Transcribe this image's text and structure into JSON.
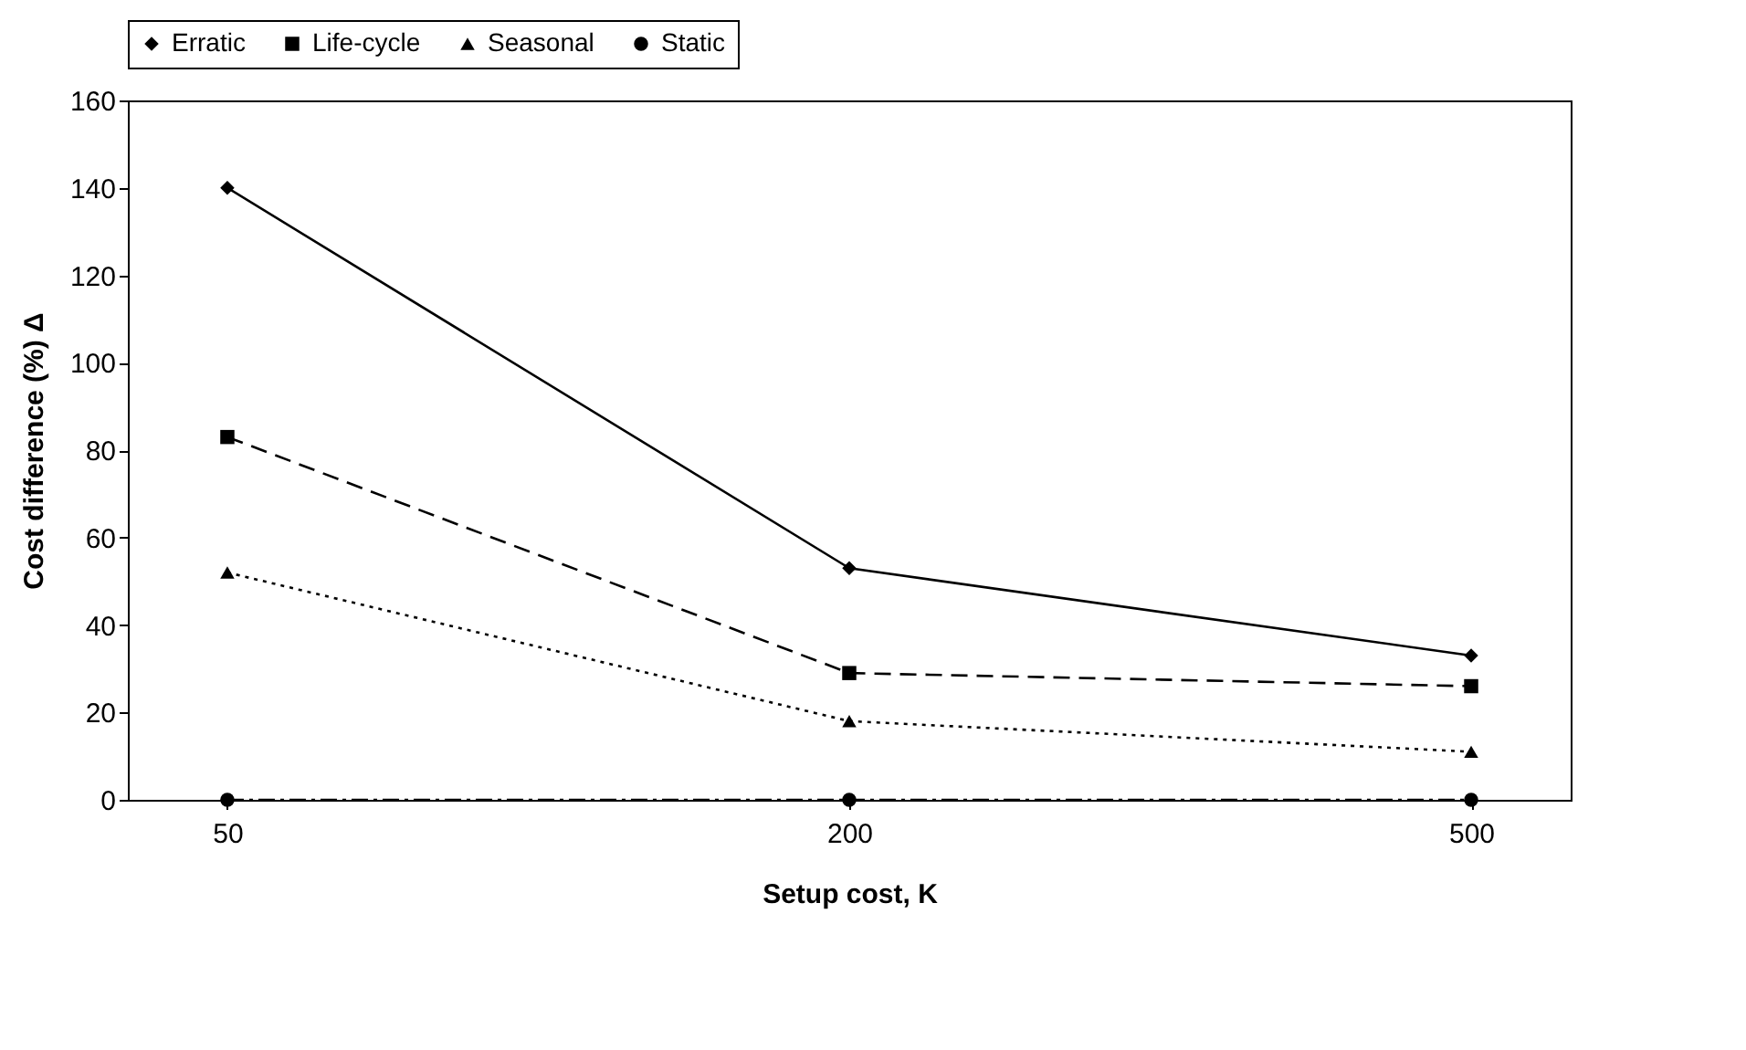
{
  "chart_data": {
    "type": "line",
    "xlabel": "Setup cost, K",
    "ylabel": "Cost difference (%) Δ",
    "categories": [
      "50",
      "200",
      "500"
    ],
    "series": [
      {
        "name": "Erratic",
        "color": "#000000",
        "marker": "diamond",
        "line_style": "solid",
        "values": [
          140,
          53,
          33
        ]
      },
      {
        "name": "Life-cycle",
        "color": "#000000",
        "marker": "square",
        "line_style": "dashed",
        "values": [
          83,
          29,
          26
        ]
      },
      {
        "name": "Seasonal",
        "color": "#000000",
        "marker": "triangle",
        "line_style": "dotted",
        "values": [
          52,
          18,
          11
        ]
      },
      {
        "name": "Static",
        "color": "#000000",
        "marker": "circle",
        "line_style": "dashdot",
        "values": [
          0,
          0,
          0
        ]
      }
    ],
    "ylim": [
      0,
      160
    ],
    "yticks": [
      0,
      20,
      40,
      60,
      80,
      100,
      120,
      140,
      160
    ],
    "grid": false,
    "legend": "top"
  }
}
